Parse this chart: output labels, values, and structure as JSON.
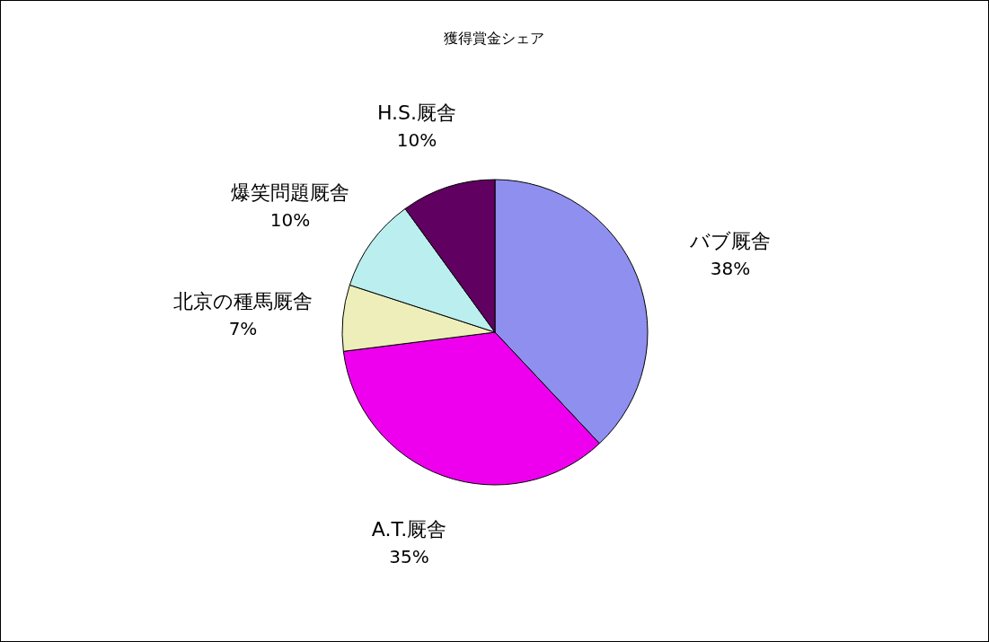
{
  "chart_data": {
    "type": "pie",
    "title": "獲得賞金シェア",
    "categories": [
      "バブ厩舎",
      "A.T.厩舎",
      "北京の種馬厩舎",
      "爆笑問題厩舎",
      "H.S.厩舎"
    ],
    "values": [
      38,
      35,
      7,
      10,
      10
    ],
    "value_labels": [
      "38%",
      "35%",
      "7%",
      "10%",
      "10%"
    ],
    "colors": [
      "#8f8fef",
      "#ee00ee",
      "#eeeebb",
      "#bbeeee",
      "#600060"
    ]
  }
}
